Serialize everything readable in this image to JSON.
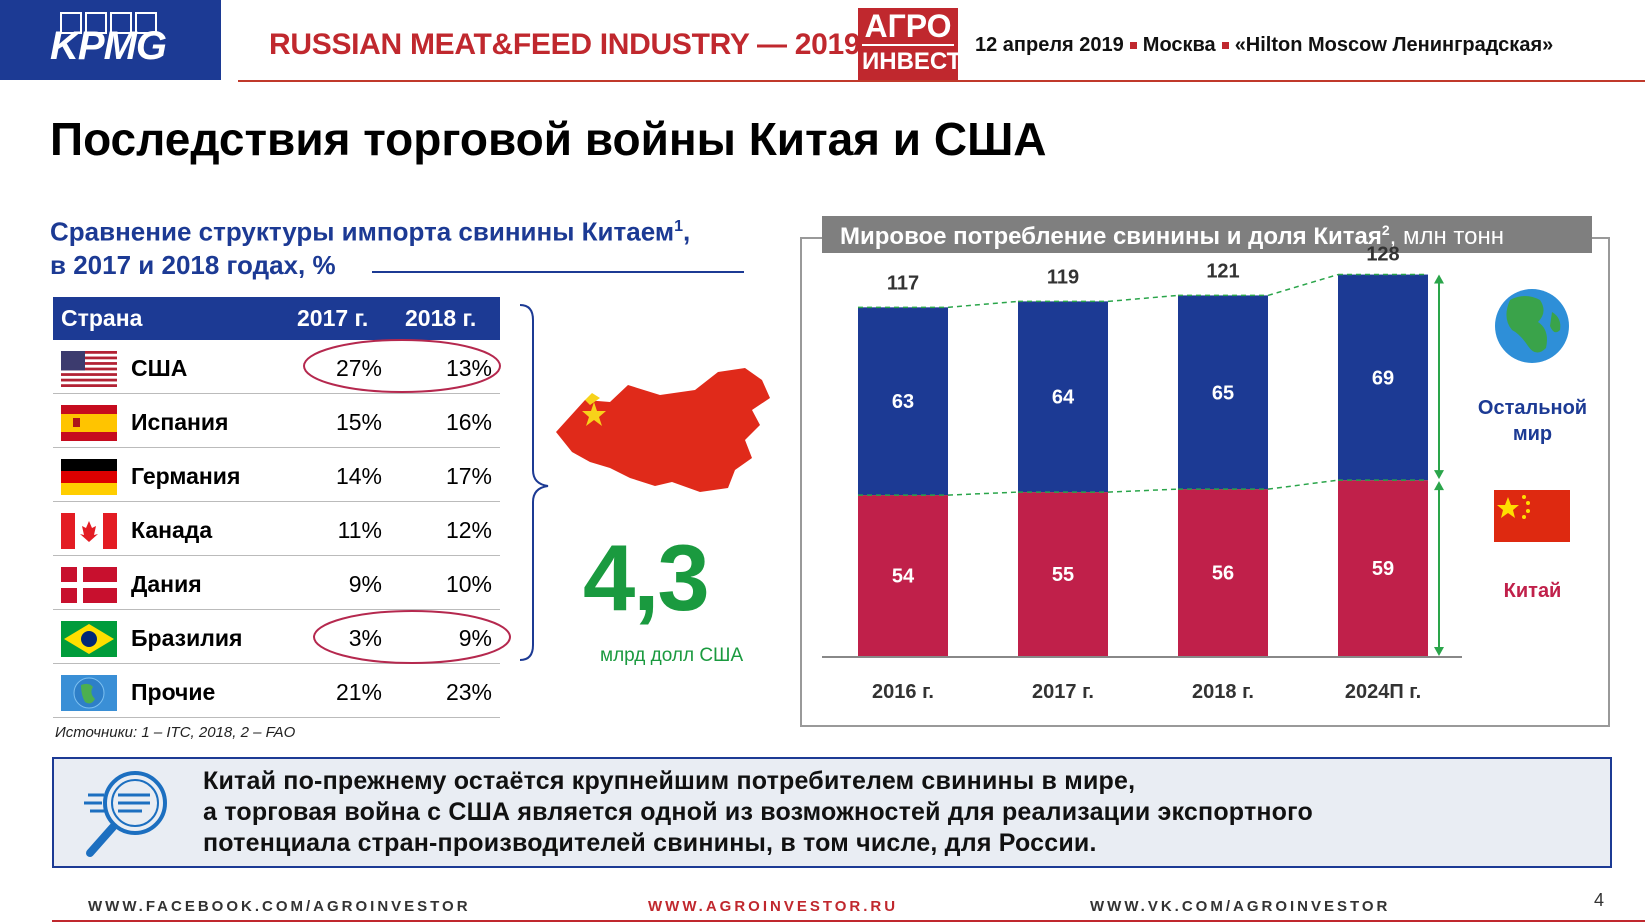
{
  "header": {
    "brand": "KPMG",
    "event_title": "RUSSIAN MEAT&FEED INDUSTRY — 2019",
    "logo_line1": "АГРО",
    "logo_line2": "ИНВЕСТОР",
    "date": "12 апреля 2019",
    "city": "Москва",
    "venue": "«Hilton Moscow Ленинградская»"
  },
  "slide_title": "Последствия торговой войны Китая и США",
  "left": {
    "subtitle_line1": "Сравнение структуры импорта свинины Китаем",
    "subtitle_sup": "1",
    "subtitle_comma": ",",
    "subtitle_line2": "в 2017 и 2018 годах, %",
    "table": {
      "headers": [
        "Страна",
        "2017 г.",
        "2018 г."
      ],
      "rows": [
        {
          "country": "США",
          "v2017": "27%",
          "v2018": "13%",
          "flag": "usa-flag-icon"
        },
        {
          "country": "Испания",
          "v2017": "15%",
          "v2018": "16%",
          "flag": "spain-flag-icon"
        },
        {
          "country": "Германия",
          "v2017": "14%",
          "v2018": "17%",
          "flag": "germany-flag-icon"
        },
        {
          "country": "Канада",
          "v2017": "11%",
          "v2018": "12%",
          "flag": "canada-flag-icon"
        },
        {
          "country": "Дания",
          "v2017": "9%",
          "v2018": "10%",
          "flag": "denmark-flag-icon"
        },
        {
          "country": "Бразилия",
          "v2017": "3%",
          "v2018": "9%",
          "flag": "brazil-flag-icon"
        },
        {
          "country": "Прочие",
          "v2017": "21%",
          "v2018": "23%",
          "flag": "globe-icon"
        }
      ]
    },
    "source": "Источники: 1 – ITC, 2018, 2 – FAO",
    "big_number": "4,3",
    "big_number_unit": "млрд долл США"
  },
  "chart_data": {
    "type": "bar",
    "stacked": true,
    "title": "Мировое потребление свинины и доля Китая",
    "title_sup": "2",
    "title_unit": ", млн тонн",
    "categories": [
      "2016 г.",
      "2017 г.",
      "2018 г.",
      "2024П г."
    ],
    "series": [
      {
        "name": "Китай",
        "values": [
          54,
          55,
          56,
          59
        ],
        "color": "#c0204a"
      },
      {
        "name": "Остальной мир",
        "values": [
          63,
          64,
          65,
          69
        ],
        "color": "#1c3a94"
      }
    ],
    "totals": [
      117,
      119,
      121,
      128
    ],
    "legend": "right"
  },
  "legend": {
    "rest_line1": "Остальной",
    "rest_line2": "мир",
    "china": "Китай"
  },
  "callout": {
    "line1": "Китай по-прежнему остаётся крупнейшим потребителем свинины в мире,",
    "line2": "а торговая война с США является одной из возможностей для реализации экспортного",
    "line3": "потенциала стран-производителей свинины, в том числе, для России."
  },
  "footer": {
    "facebook": "WWW.FACEBOOK.COM/AGROINVESTOR",
    "site": "WWW.AGROINVESTOR.RU",
    "vk": "WWW.VK.COM/AGROINVESTOR",
    "page": "4"
  }
}
